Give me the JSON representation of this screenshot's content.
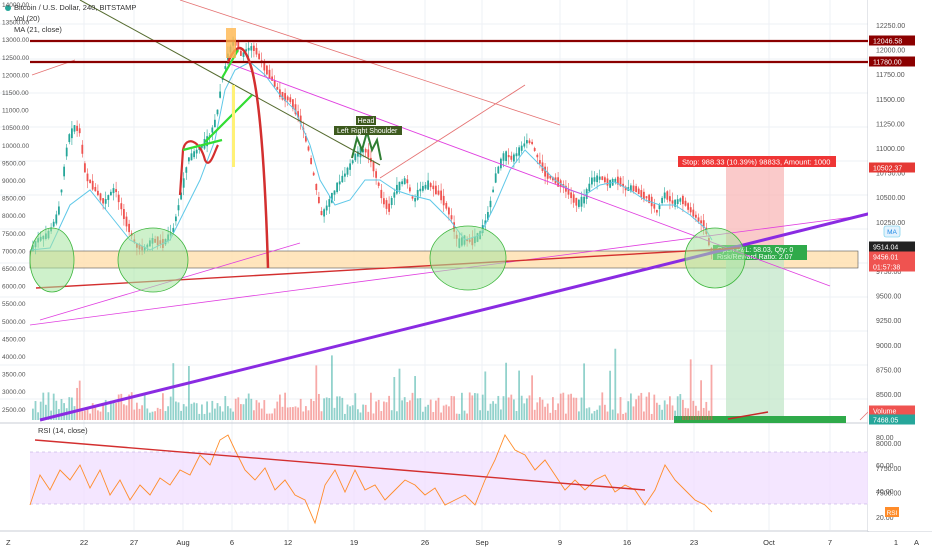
{
  "legend": {
    "symbol_line": "Bitcoin / U.S. Dollar, 240, BITSTAMP",
    "vol_line": "Vol (20)",
    "ma_line": "MA (21, close)"
  },
  "rsi_legend": "RSI (14, close)",
  "annotations": {
    "head": "Head",
    "left_shoulder": "Left",
    "right_shoulder": "Right Shoulder",
    "stop_box": "Stop: 988.33 (10.39%) 98833, Amount: 1000",
    "open_pl": "Open P&L: 58.03, Qty: 0",
    "risk_reward": "Risk/Reward Ratio: 2.07"
  },
  "price_axis": {
    "ticks": [
      "12250.00",
      "12000.00",
      "11750.00",
      "11500.00",
      "11250.00",
      "11000.00",
      "10750.00",
      "10500.00",
      "10250.00",
      "10000.00",
      "9750.00",
      "9500.00",
      "9250.00",
      "9000.00",
      "8750.00",
      "8500.00",
      "8250.00",
      "8000.00",
      "7750.00",
      "7500.00"
    ],
    "labels": [
      {
        "text": "12046.58",
        "color": "#8b0000"
      },
      {
        "text": "11780.00",
        "color": "#8b0000"
      },
      {
        "text": "10502.37",
        "color": "#e53935"
      },
      {
        "text": "9514.04",
        "color": "#222222"
      },
      {
        "text": "9456.01",
        "color": "#ef5350"
      },
      {
        "text": "01:57:38",
        "color": "#ef5350"
      },
      {
        "text": "Volume",
        "color": "#ef5350"
      },
      {
        "text": "7468.05",
        "color": "#26a69a"
      }
    ],
    "ma_badge": "MA"
  },
  "left_axis": {
    "ticks": [
      "14000.00",
      "13500.00",
      "13000.00",
      "12500.00",
      "12000.00",
      "11500.00",
      "11000.00",
      "10500.00",
      "10000.00",
      "9500.00",
      "9000.00",
      "8500.00",
      "8000.00",
      "7500.00",
      "7000.00",
      "6500.00",
      "6000.00",
      "5500.00",
      "5000.00",
      "4500.00",
      "4000.00",
      "3500.00",
      "3000.00",
      "2500.00"
    ]
  },
  "rsi_axis": {
    "ticks": [
      "80.00",
      "60.00",
      "40.00",
      "20.00"
    ],
    "badge": "RSI"
  },
  "time_axis": {
    "ticks": [
      "22",
      "27",
      "Aug",
      "6",
      "12",
      "19",
      "26",
      "Sep",
      "9",
      "16",
      "23",
      "Oct",
      "7",
      "1"
    ],
    "corner_left": "Z",
    "corner_right": "A"
  },
  "colors": {
    "up": "#26a69a",
    "down": "#ef5350",
    "resistance": "#8b0000",
    "trend_purple": "#8a2be2",
    "magenta": "#e040e0",
    "ma": "#5fc8e8",
    "rsi": "#ff8c2a",
    "rsi_band": "#f1e0ff"
  }
}
